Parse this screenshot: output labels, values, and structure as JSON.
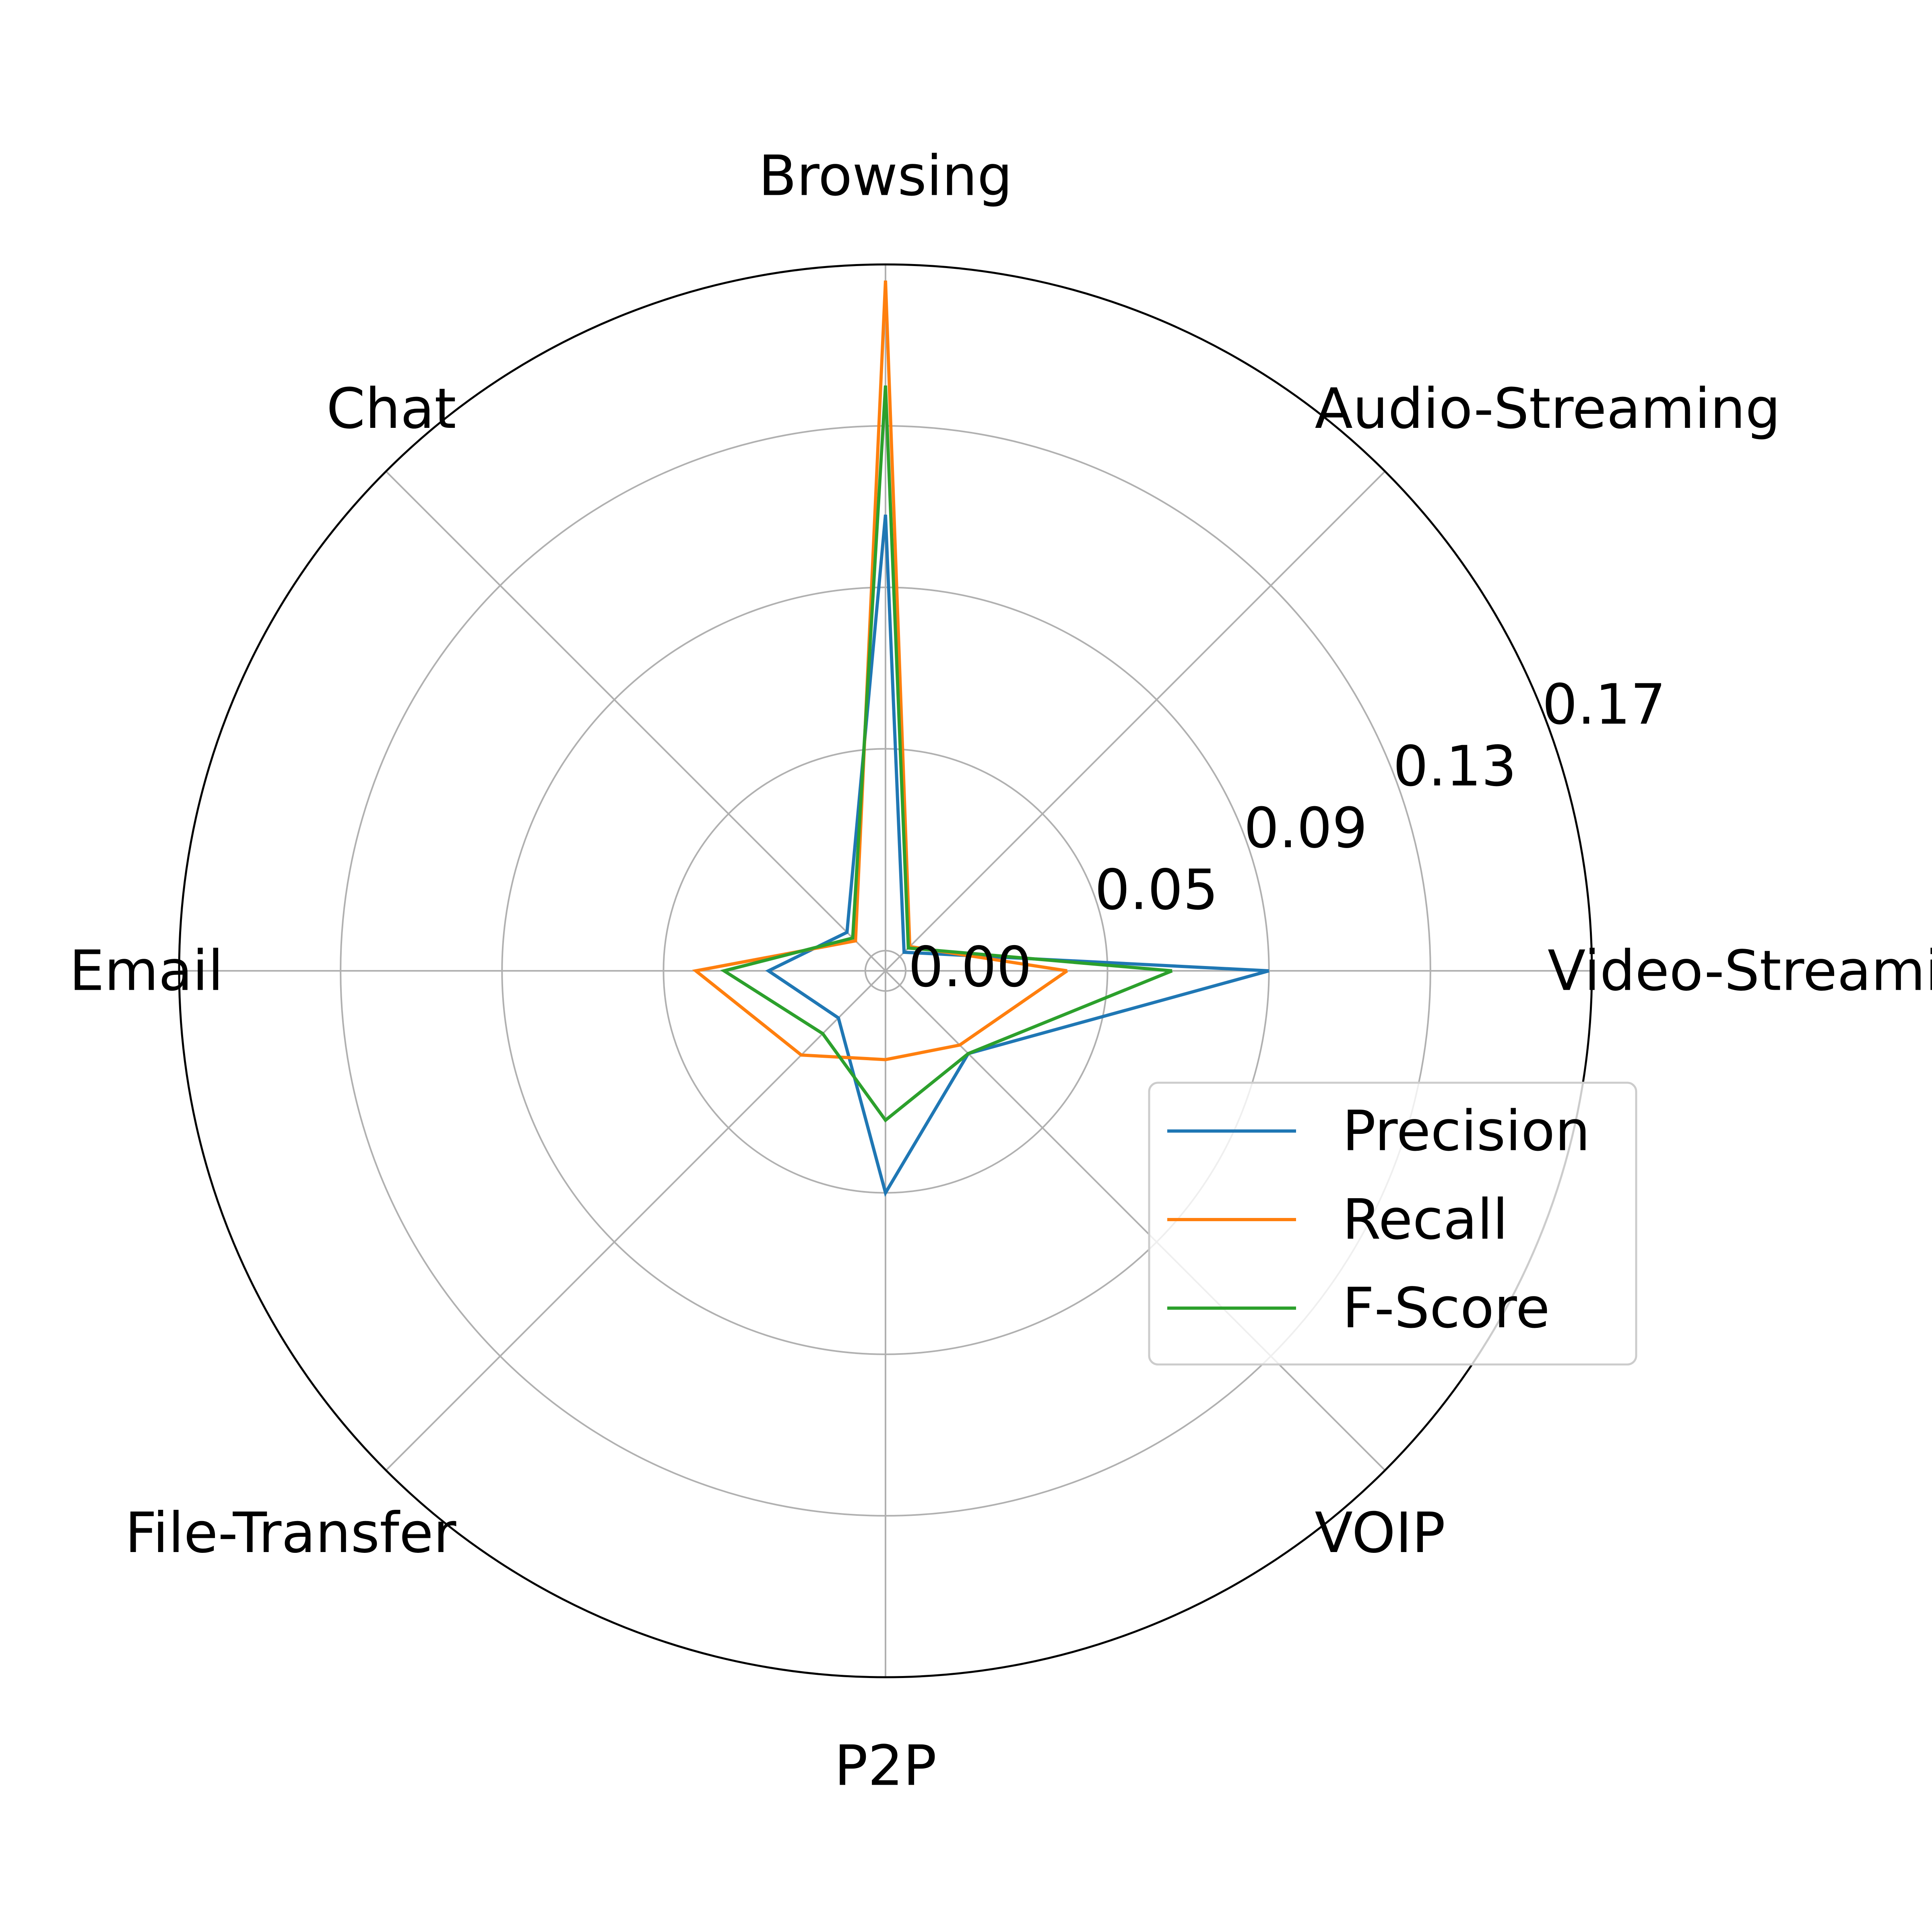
{
  "chart_data": {
    "type": "radar",
    "title": "",
    "categories": [
      "Video-Streaming",
      "Audio-Streaming",
      "Browsing",
      "Chat",
      "Email",
      "File-Transfer",
      "P2P",
      "VOIP"
    ],
    "radial_ticks": [
      "0.00",
      "0.05",
      "0.09",
      "0.13",
      "0.17"
    ],
    "rlim": [
      -0.005,
      0.17
    ],
    "grid": true,
    "legend_position": "lower-right",
    "series": [
      {
        "name": "Precision",
        "color": "#1f77b4",
        "values": [
          0.09,
          0.0015,
          0.108,
          0.0085,
          0.024,
          0.0115,
          0.05,
          0.024
        ]
      },
      {
        "name": "Recall",
        "color": "#ff7f0e",
        "values": [
          0.04,
          0.0035,
          0.166,
          0.0055,
          0.042,
          0.0245,
          0.017,
          0.021
        ]
      },
      {
        "name": "F-Score",
        "color": "#2ca02c",
        "values": [
          0.066,
          0.003,
          0.14,
          0.0065,
          0.035,
          0.017,
          0.032,
          0.024
        ]
      }
    ]
  }
}
